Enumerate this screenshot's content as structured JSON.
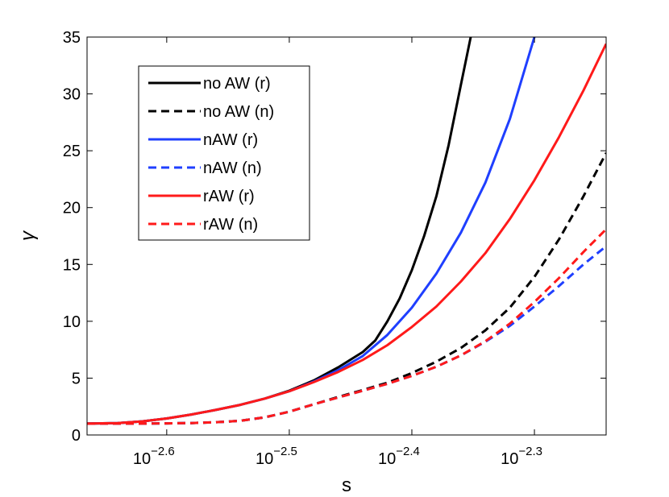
{
  "chart_data": {
    "type": "line",
    "xlabel": "s",
    "ylabel": "γ",
    "xscale": "log",
    "xlim_log10": [
      -2.665,
      -2.2415
    ],
    "ylim": [
      0,
      35
    ],
    "grid": false,
    "legend_position": "top-left",
    "x_ticks": [
      {
        "base": "10",
        "exp": "−2.6",
        "log10": -2.6
      },
      {
        "base": "10",
        "exp": "−2.5",
        "log10": -2.5
      },
      {
        "base": "10",
        "exp": "−2.4",
        "log10": -2.4
      },
      {
        "base": "10",
        "exp": "−2.3",
        "log10": -2.3
      }
    ],
    "y_ticks": [
      "0",
      "5",
      "10",
      "15",
      "20",
      "25",
      "30",
      "35"
    ],
    "y_tick_values": [
      0,
      5,
      10,
      15,
      20,
      25,
      30,
      35
    ],
    "series": [
      {
        "name": "no AW (r)",
        "color": "#000000",
        "dash": false,
        "x_log10": [
          -2.665,
          -2.64,
          -2.62,
          -2.6,
          -2.58,
          -2.56,
          -2.54,
          -2.52,
          -2.5,
          -2.48,
          -2.46,
          -2.44,
          -2.43,
          -2.42,
          -2.41,
          -2.4,
          -2.39,
          -2.38,
          -2.37,
          -2.36,
          -2.352
        ],
        "y": [
          1.0,
          1.05,
          1.2,
          1.45,
          1.8,
          2.2,
          2.65,
          3.2,
          3.9,
          4.8,
          5.95,
          7.3,
          8.3,
          10.0,
          12.0,
          14.5,
          17.5,
          21.0,
          25.5,
          30.8,
          35.0
        ]
      },
      {
        "name": "no AW (n)",
        "color": "#000000",
        "dash": true,
        "x_log10": [
          -2.665,
          -2.62,
          -2.6,
          -2.58,
          -2.56,
          -2.54,
          -2.52,
          -2.5,
          -2.48,
          -2.46,
          -2.44,
          -2.42,
          -2.4,
          -2.38,
          -2.36,
          -2.34,
          -2.32,
          -2.3,
          -2.28,
          -2.26,
          -2.2415
        ],
        "y": [
          1.0,
          1.0,
          1.02,
          1.05,
          1.12,
          1.25,
          1.55,
          2.05,
          2.7,
          3.35,
          3.95,
          4.6,
          5.45,
          6.45,
          7.65,
          9.2,
          11.2,
          13.9,
          17.2,
          21.0,
          24.8
        ]
      },
      {
        "name": "nAW (r)",
        "color": "#1f3fff",
        "dash": false,
        "x_log10": [
          -2.665,
          -2.64,
          -2.62,
          -2.6,
          -2.58,
          -2.56,
          -2.54,
          -2.52,
          -2.5,
          -2.48,
          -2.46,
          -2.44,
          -2.42,
          -2.4,
          -2.38,
          -2.36,
          -2.34,
          -2.32,
          -2.3
        ],
        "y": [
          1.0,
          1.05,
          1.2,
          1.45,
          1.8,
          2.2,
          2.65,
          3.2,
          3.85,
          4.7,
          5.7,
          6.95,
          8.8,
          11.2,
          14.2,
          17.8,
          22.2,
          27.8,
          35.0
        ]
      },
      {
        "name": "nAW (n)",
        "color": "#1f3fff",
        "dash": true,
        "x_log10": [
          -2.665,
          -2.62,
          -2.6,
          -2.58,
          -2.56,
          -2.54,
          -2.52,
          -2.5,
          -2.48,
          -2.46,
          -2.44,
          -2.42,
          -2.4,
          -2.38,
          -2.36,
          -2.34,
          -2.32,
          -2.3,
          -2.28,
          -2.26,
          -2.2415
        ],
        "y": [
          1.0,
          1.0,
          1.02,
          1.05,
          1.12,
          1.25,
          1.55,
          2.05,
          2.7,
          3.3,
          3.9,
          4.5,
          5.2,
          6.0,
          7.0,
          8.2,
          9.6,
          11.3,
          13.1,
          15.0,
          16.6
        ]
      },
      {
        "name": "rAW (r)",
        "color": "#ff1a1a",
        "dash": false,
        "x_log10": [
          -2.665,
          -2.64,
          -2.62,
          -2.6,
          -2.58,
          -2.56,
          -2.54,
          -2.52,
          -2.5,
          -2.48,
          -2.46,
          -2.44,
          -2.42,
          -2.4,
          -2.38,
          -2.36,
          -2.34,
          -2.32,
          -2.3,
          -2.28,
          -2.26,
          -2.2415
        ],
        "y": [
          1.0,
          1.05,
          1.2,
          1.45,
          1.8,
          2.2,
          2.65,
          3.2,
          3.85,
          4.65,
          5.55,
          6.6,
          7.9,
          9.5,
          11.3,
          13.5,
          16.0,
          19.0,
          22.4,
          26.2,
          30.3,
          34.4
        ]
      },
      {
        "name": "rAW (n)",
        "color": "#ff1a1a",
        "dash": true,
        "x_log10": [
          -2.665,
          -2.62,
          -2.6,
          -2.58,
          -2.56,
          -2.54,
          -2.52,
          -2.5,
          -2.48,
          -2.46,
          -2.44,
          -2.42,
          -2.4,
          -2.38,
          -2.36,
          -2.34,
          -2.32,
          -2.3,
          -2.28,
          -2.26,
          -2.2415
        ],
        "y": [
          1.0,
          1.0,
          1.02,
          1.05,
          1.12,
          1.25,
          1.55,
          2.05,
          2.7,
          3.3,
          3.9,
          4.5,
          5.2,
          6.0,
          7.0,
          8.25,
          9.8,
          11.7,
          13.8,
          16.1,
          18.1
        ]
      }
    ]
  }
}
